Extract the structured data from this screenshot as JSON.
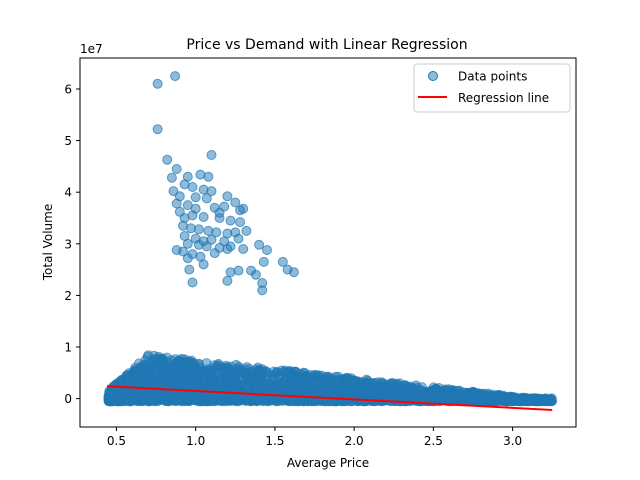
{
  "chart_data": {
    "type": "scatter",
    "title": "Price vs Demand with Linear Regression",
    "xlabel": "Average Price",
    "ylabel": "Total Volume",
    "y_multiplier_label": "1e7",
    "xlim": [
      0.27,
      3.4
    ],
    "ylim": [
      -0.55,
      6.6
    ],
    "x_ticks": [
      0.5,
      1.0,
      1.5,
      2.0,
      2.5,
      3.0
    ],
    "x_tick_labels": [
      "0.5",
      "1.0",
      "1.5",
      "2.0",
      "2.5",
      "3.0"
    ],
    "y_ticks": [
      0,
      1,
      2,
      3,
      4,
      5,
      6
    ],
    "y_tick_labels": [
      "0",
      "1",
      "2",
      "3",
      "4",
      "5",
      "6"
    ],
    "grid": false,
    "legend": {
      "placement": "top-right",
      "entries": [
        {
          "label": "Data points",
          "kind": "marker",
          "color": "#1f77b4"
        },
        {
          "label": "Regression line",
          "kind": "line",
          "color": "#ff0000"
        }
      ]
    },
    "series": [
      {
        "name": "Data points",
        "kind": "scatter",
        "color": "#1f77b4",
        "points": [
          [
            0.76,
            6.1
          ],
          [
            0.87,
            6.25
          ],
          [
            0.76,
            5.22
          ],
          [
            1.1,
            4.72
          ],
          [
            0.82,
            4.63
          ],
          [
            0.88,
            4.45
          ],
          [
            0.85,
            4.28
          ],
          [
            0.95,
            4.3
          ],
          [
            1.03,
            4.34
          ],
          [
            1.08,
            4.3
          ],
          [
            0.93,
            4.15
          ],
          [
            0.98,
            4.1
          ],
          [
            1.05,
            4.05
          ],
          [
            1.1,
            4.02
          ],
          [
            0.86,
            4.02
          ],
          [
            0.9,
            3.92
          ],
          [
            1.0,
            3.9
          ],
          [
            1.07,
            3.88
          ],
          [
            1.2,
            3.92
          ],
          [
            1.25,
            3.8
          ],
          [
            0.88,
            3.78
          ],
          [
            0.95,
            3.75
          ],
          [
            1.0,
            3.68
          ],
          [
            1.12,
            3.7
          ],
          [
            1.18,
            3.72
          ],
          [
            1.3,
            3.68
          ],
          [
            0.9,
            3.62
          ],
          [
            0.93,
            3.5
          ],
          [
            0.98,
            3.55
          ],
          [
            1.05,
            3.52
          ],
          [
            1.15,
            3.5
          ],
          [
            1.22,
            3.45
          ],
          [
            1.28,
            3.42
          ],
          [
            0.92,
            3.35
          ],
          [
            0.97,
            3.3
          ],
          [
            1.02,
            3.28
          ],
          [
            1.08,
            3.25
          ],
          [
            1.13,
            3.22
          ],
          [
            1.2,
            3.2
          ],
          [
            1.25,
            3.22
          ],
          [
            1.32,
            3.25
          ],
          [
            0.93,
            3.15
          ],
          [
            1.0,
            3.1
          ],
          [
            1.05,
            3.05
          ],
          [
            1.1,
            3.08
          ],
          [
            1.18,
            3.05
          ],
          [
            1.27,
            3.1
          ],
          [
            0.95,
            3.0
          ],
          [
            1.02,
            2.98
          ],
          [
            1.07,
            2.95
          ],
          [
            1.15,
            2.92
          ],
          [
            1.22,
            2.95
          ],
          [
            0.88,
            2.88
          ],
          [
            0.92,
            2.85
          ],
          [
            0.98,
            2.8
          ],
          [
            1.03,
            2.75
          ],
          [
            1.12,
            2.82
          ],
          [
            1.2,
            2.9
          ],
          [
            1.3,
            2.9
          ],
          [
            0.95,
            2.72
          ],
          [
            1.05,
            2.6
          ],
          [
            1.27,
            2.48
          ],
          [
            1.22,
            2.45
          ],
          [
            1.35,
            2.48
          ],
          [
            1.38,
            2.4
          ],
          [
            0.96,
            2.5
          ],
          [
            0.98,
            2.25
          ],
          [
            1.2,
            2.28
          ],
          [
            1.4,
            2.98
          ],
          [
            1.45,
            2.88
          ],
          [
            1.43,
            2.65
          ],
          [
            1.55,
            2.65
          ],
          [
            1.58,
            2.5
          ],
          [
            1.62,
            2.45
          ],
          [
            1.42,
            2.24
          ],
          [
            1.42,
            2.1
          ],
          [
            1.28,
            3.65
          ],
          [
            1.15,
            3.6
          ]
        ],
        "dense_band": {
          "x_range": [
            0.45,
            3.25
          ],
          "y_range": [
            -0.1,
            1.15
          ],
          "description_values": "many points near 0 to 1"
        }
      },
      {
        "name": "Regression line",
        "kind": "line",
        "color": "#ff0000",
        "points": [
          [
            0.44,
            0.24
          ],
          [
            3.25,
            -0.22
          ]
        ]
      }
    ]
  }
}
